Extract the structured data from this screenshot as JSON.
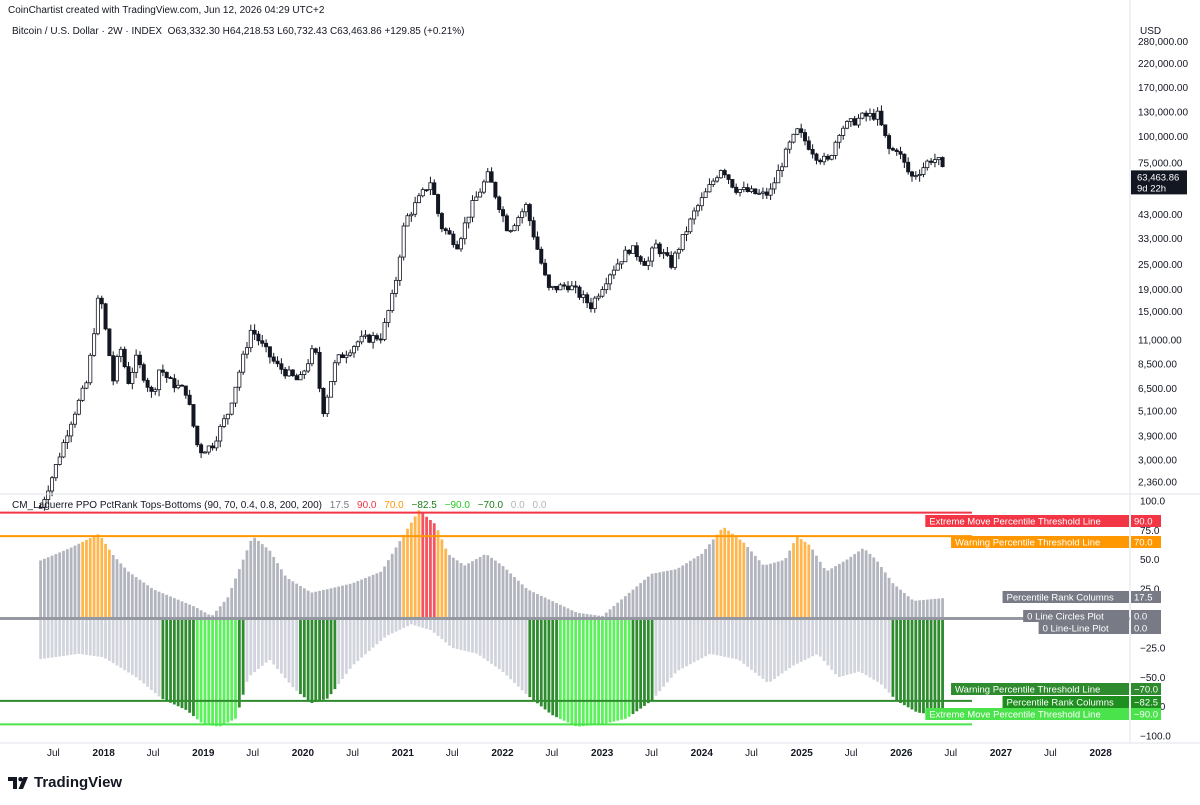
{
  "header": {
    "credit": "CoinChartist created with TradingView.com, Jun 12, 2026 04:29 UTC+2",
    "symbol": "Bitcoin / U.S. Dollar · 2W · INDEX",
    "ohlc": "O63,332.30  H64,218.53  L60,732.43  C63,463.86  +129.85 (+0.21%)"
  },
  "indicator": {
    "name": "CM_Laguerre PPO PctRank Tops-Bottoms (90, 70, 0.4, 0.8, 200, 200)",
    "values": [
      {
        "text": "17.5",
        "color": "#787b86"
      },
      {
        "text": "90.0",
        "color": "#f23645"
      },
      {
        "text": "70.0",
        "color": "#ff9800"
      },
      {
        "text": "−82.5",
        "color": "#1b7a1b"
      },
      {
        "text": "−90.0",
        "color": "#22c922"
      },
      {
        "text": "−70.0",
        "color": "#1b7a1b"
      },
      {
        "text": "0.0",
        "color": "#b2b5be"
      },
      {
        "text": "0.0",
        "color": "#b2b5be"
      }
    ]
  },
  "colors": {
    "extreme_top": "#f23645",
    "warning_top": "#ff9800",
    "warning_bottom": "#2e8b2e",
    "extreme_bottom": "#4be34b",
    "column_grey": "#b2b5be",
    "column_light": "#d1d4dc"
  },
  "branding": {
    "logo_icon": "tradingview-logo-icon",
    "name": "TradingView"
  },
  "chart_data": [
    {
      "type": "candlestick",
      "title": "Bitcoin / U.S. Dollar · 2W · INDEX",
      "currency": "USD",
      "scale": "log",
      "yticks": [
        "280,000.00",
        "220,000.00",
        "170,000.00",
        "130,000.00",
        "100,000.00",
        "75,000.00",
        "43,000.00",
        "33,000.00",
        "25,000.00",
        "19,000.00",
        "15,000.00",
        "11,000.00",
        "8,500.00",
        "6,500.00",
        "5,100.00",
        "3,900.00",
        "3,000.00",
        "2,360.00"
      ],
      "ylim": [
        2100,
        300000
      ],
      "last_price": "63,463.86",
      "countdown": "9d 22h",
      "close_path": [
        [
          "2017-05-15",
          1800
        ],
        [
          "2017-07-01",
          2600
        ],
        [
          "2017-09-01",
          4500
        ],
        [
          "2017-11-01",
          7000
        ],
        [
          "2017-12-17",
          19000
        ],
        [
          "2018-01-01",
          14000
        ],
        [
          "2018-02-06",
          7000
        ],
        [
          "2018-03-01",
          10500
        ],
        [
          "2018-04-01",
          7000
        ],
        [
          "2018-05-01",
          9000
        ],
        [
          "2018-06-29",
          6000
        ],
        [
          "2018-07-25",
          8200
        ],
        [
          "2018-09-01",
          7000
        ],
        [
          "2018-10-31",
          6300
        ],
        [
          "2018-12-15",
          3300
        ],
        [
          "2019-02-01",
          3500
        ],
        [
          "2019-04-01",
          5000
        ],
        [
          "2019-06-26",
          12500
        ],
        [
          "2019-08-01",
          10500
        ],
        [
          "2019-09-25",
          8400
        ],
        [
          "2019-12-18",
          7000
        ],
        [
          "2020-02-13",
          10300
        ],
        [
          "2020-03-13",
          5000
        ],
        [
          "2020-05-01",
          8800
        ],
        [
          "2020-07-27",
          11000
        ],
        [
          "2020-10-15",
          11500
        ],
        [
          "2020-12-01",
          19000
        ],
        [
          "2021-01-08",
          40000
        ],
        [
          "2021-04-14",
          62000
        ],
        [
          "2021-05-20",
          38000
        ],
        [
          "2021-07-20",
          31000
        ],
        [
          "2021-09-07",
          46000
        ],
        [
          "2021-11-10",
          66000
        ],
        [
          "2022-01-22",
          36000
        ],
        [
          "2022-03-28",
          47000
        ],
        [
          "2022-06-18",
          19000
        ],
        [
          "2022-09-01",
          20000
        ],
        [
          "2022-11-21",
          16000
        ],
        [
          "2023-01-31",
          23000
        ],
        [
          "2023-04-14",
          30000
        ],
        [
          "2023-06-15",
          25000
        ],
        [
          "2023-07-14",
          31000
        ],
        [
          "2023-09-11",
          25000
        ],
        [
          "2023-12-05",
          44000
        ],
        [
          "2024-03-14",
          72000
        ],
        [
          "2024-05-01",
          57000
        ],
        [
          "2024-08-05",
          53000
        ],
        [
          "2024-09-06",
          54000
        ],
        [
          "2024-11-15",
          90000
        ],
        [
          "2024-12-17",
          106000
        ],
        [
          "2025-02-28",
          80000
        ],
        [
          "2025-04-08",
          76000
        ],
        [
          "2025-05-22",
          109000
        ],
        [
          "2025-08-14",
          124000
        ],
        [
          "2025-10-06",
          126000
        ],
        [
          "2025-11-21",
          84000
        ],
        [
          "2025-12-15",
          88000
        ],
        [
          "2026-02-05",
          64000
        ],
        [
          "2026-03-15",
          70000
        ],
        [
          "2026-04-15",
          78000
        ],
        [
          "2026-05-15",
          78000
        ],
        [
          "2026-06-12",
          63463.86
        ]
      ]
    },
    {
      "type": "bar",
      "title": "CM_Laguerre PPO PctRank Tops-Bottoms (90, 70, 0.4, 0.8, 200, 200)",
      "yticks": [
        "100.0",
        "75.0",
        "50.0",
        "25.0",
        "0.0",
        "−25.0",
        "−50.0",
        "−75.0",
        "−100.0"
      ],
      "ylim": [
        -105,
        105
      ],
      "thresholds": [
        {
          "value": 90,
          "label": "Extreme Move Percentile Threshold Line",
          "display": "90.0",
          "color": "#f23645"
        },
        {
          "value": 70,
          "label": "Warning Percentile Threshold Line",
          "display": "70.0",
          "color": "#ff9800"
        },
        {
          "value": -70,
          "label": "Warning Percentile Threshold Line",
          "display": "−70.0",
          "color": "#2e8b2e"
        },
        {
          "value": -90,
          "label": "Extreme Move Percentile Threshold Line",
          "display": "−90.0",
          "color": "#4be34b"
        }
      ],
      "series_labels": [
        {
          "label": "Percentile Rank Columns",
          "display": "17.5",
          "value": 17.5,
          "color": "#787b86"
        },
        {
          "label": "0 Line Circles Plot",
          "display": "0.0",
          "value": 0,
          "color": "#787b86"
        },
        {
          "label": "0 Line-Line Plot",
          "display": "0.0",
          "value": 0,
          "color": "#787b86"
        },
        {
          "label": "Percentile Rank Columns",
          "display": "−82.5",
          "value": -82.5,
          "color": "#1e8e1e"
        }
      ],
      "top_profile": [
        [
          "2017-05-01",
          48
        ],
        [
          "2017-09-01",
          60
        ],
        [
          "2017-12-15",
          72
        ],
        [
          "2018-02-01",
          55
        ],
        [
          "2018-04-01",
          40
        ],
        [
          "2018-07-01",
          25
        ],
        [
          "2018-12-01",
          10
        ],
        [
          "2019-02-01",
          2
        ],
        [
          "2019-04-01",
          18
        ],
        [
          "2019-07-01",
          70
        ],
        [
          "2019-09-01",
          58
        ],
        [
          "2019-11-01",
          35
        ],
        [
          "2020-02-01",
          22
        ],
        [
          "2020-04-01",
          25
        ],
        [
          "2020-07-01",
          30
        ],
        [
          "2020-10-15",
          40
        ],
        [
          "2021-01-01",
          70
        ],
        [
          "2021-03-01",
          92
        ],
        [
          "2021-05-01",
          80
        ],
        [
          "2021-06-15",
          55
        ],
        [
          "2021-08-15",
          45
        ],
        [
          "2021-11-01",
          55
        ],
        [
          "2022-01-01",
          45
        ],
        [
          "2022-04-01",
          25
        ],
        [
          "2022-07-01",
          15
        ],
        [
          "2022-10-01",
          5
        ],
        [
          "2023-01-01",
          2
        ],
        [
          "2023-04-01",
          20
        ],
        [
          "2023-07-01",
          38
        ],
        [
          "2023-10-01",
          42
        ],
        [
          "2024-01-01",
          55
        ],
        [
          "2024-03-20",
          78
        ],
        [
          "2024-06-01",
          65
        ],
        [
          "2024-08-15",
          45
        ],
        [
          "2024-11-01",
          50
        ],
        [
          "2024-12-15",
          70
        ],
        [
          "2025-02-01",
          62
        ],
        [
          "2025-04-01",
          40
        ],
        [
          "2025-06-15",
          50
        ],
        [
          "2025-08-15",
          60
        ],
        [
          "2025-10-01",
          50
        ],
        [
          "2025-12-01",
          30
        ],
        [
          "2026-02-15",
          15
        ],
        [
          "2026-06-12",
          17.5
        ]
      ],
      "bottom_profile": [
        [
          "2017-05-01",
          -35
        ],
        [
          "2017-10-01",
          -30
        ],
        [
          "2018-01-01",
          -33
        ],
        [
          "2018-05-01",
          -50
        ],
        [
          "2018-08-01",
          -68
        ],
        [
          "2018-11-01",
          -78
        ],
        [
          "2019-01-01",
          -90
        ],
        [
          "2019-03-01",
          -92
        ],
        [
          "2019-05-01",
          -85
        ],
        [
          "2019-06-15",
          -50
        ],
        [
          "2019-09-01",
          -35
        ],
        [
          "2019-12-01",
          -60
        ],
        [
          "2020-02-01",
          -72
        ],
        [
          "2020-04-01",
          -68
        ],
        [
          "2020-07-01",
          -40
        ],
        [
          "2020-11-01",
          -15
        ],
        [
          "2021-02-01",
          -5
        ],
        [
          "2021-04-15",
          -10
        ],
        [
          "2021-07-01",
          -25
        ],
        [
          "2021-10-01",
          -30
        ],
        [
          "2022-01-01",
          -45
        ],
        [
          "2022-04-01",
          -65
        ],
        [
          "2022-07-01",
          -82
        ],
        [
          "2022-10-01",
          -92
        ],
        [
          "2023-01-01",
          -90
        ],
        [
          "2023-04-01",
          -85
        ],
        [
          "2023-07-01",
          -70
        ],
        [
          "2023-10-01",
          -45
        ],
        [
          "2024-02-01",
          -30
        ],
        [
          "2024-05-15",
          -35
        ],
        [
          "2024-09-01",
          -55
        ],
        [
          "2024-12-01",
          -40
        ],
        [
          "2025-03-01",
          -30
        ],
        [
          "2025-05-15",
          -50
        ],
        [
          "2025-08-01",
          -45
        ],
        [
          "2025-10-15",
          -55
        ],
        [
          "2025-12-15",
          -70
        ],
        [
          "2026-03-01",
          -80
        ],
        [
          "2026-06-12",
          -82.5
        ]
      ],
      "highlight_ranges": [
        {
          "from": "2017-10-15",
          "to": "2018-01-31",
          "side": "top",
          "color": "#ffb74d"
        },
        {
          "from": "2021-01-01",
          "to": "2021-03-15",
          "side": "top",
          "color": "#ffb74d"
        },
        {
          "from": "2021-03-15",
          "to": "2021-05-10",
          "side": "top",
          "color": "#f7525f"
        },
        {
          "from": "2021-05-10",
          "to": "2021-06-20",
          "side": "top",
          "color": "#ffb74d"
        },
        {
          "from": "2024-02-15",
          "to": "2024-06-15",
          "side": "top",
          "color": "#ffb74d"
        },
        {
          "from": "2024-12-01",
          "to": "2025-01-31",
          "side": "top",
          "color": "#ffb74d"
        },
        {
          "from": "2018-08-01",
          "to": "2018-11-30",
          "side": "bottom",
          "color": "#2e8b2e"
        },
        {
          "from": "2018-11-30",
          "to": "2019-05-01",
          "side": "bottom",
          "color": "#5cf25c"
        },
        {
          "from": "2019-05-01",
          "to": "2019-06-10",
          "side": "bottom",
          "color": "#2e8b2e"
        },
        {
          "from": "2019-12-15",
          "to": "2020-05-01",
          "side": "bottom",
          "color": "#2e8b2e"
        },
        {
          "from": "2022-04-01",
          "to": "2022-07-20",
          "side": "bottom",
          "color": "#2e8b2e"
        },
        {
          "from": "2022-07-20",
          "to": "2023-04-15",
          "side": "bottom",
          "color": "#5cf25c"
        },
        {
          "from": "2023-04-15",
          "to": "2023-07-15",
          "side": "bottom",
          "color": "#2e8b2e"
        },
        {
          "from": "2025-12-01",
          "to": "2026-06-12",
          "side": "bottom",
          "color": "#2e8b2e"
        }
      ]
    }
  ],
  "xaxis": {
    "ticks": [
      {
        "label": "Jul",
        "date": "2017-07-01",
        "year": false
      },
      {
        "label": "2018",
        "date": "2018-01-01",
        "year": true
      },
      {
        "label": "Jul",
        "date": "2018-07-01",
        "year": false
      },
      {
        "label": "2019",
        "date": "2019-01-01",
        "year": true
      },
      {
        "label": "Jul",
        "date": "2019-07-01",
        "year": false
      },
      {
        "label": "2020",
        "date": "2020-01-01",
        "year": true
      },
      {
        "label": "Jul",
        "date": "2020-07-01",
        "year": false
      },
      {
        "label": "2021",
        "date": "2021-01-01",
        "year": true
      },
      {
        "label": "Jul",
        "date": "2021-07-01",
        "year": false
      },
      {
        "label": "2022",
        "date": "2022-01-01",
        "year": true
      },
      {
        "label": "Jul",
        "date": "2022-07-01",
        "year": false
      },
      {
        "label": "2023",
        "date": "2023-01-01",
        "year": true
      },
      {
        "label": "Jul",
        "date": "2023-07-01",
        "year": false
      },
      {
        "label": "2024",
        "date": "2024-01-01",
        "year": true
      },
      {
        "label": "Jul",
        "date": "2024-07-01",
        "year": false
      },
      {
        "label": "2025",
        "date": "2025-01-01",
        "year": true
      },
      {
        "label": "Jul",
        "date": "2025-07-01",
        "year": false
      },
      {
        "label": "2026",
        "date": "2026-01-01",
        "year": true
      },
      {
        "label": "Jul",
        "date": "2026-07-01",
        "year": false
      },
      {
        "label": "2027",
        "date": "2027-01-01",
        "year": true
      },
      {
        "label": "Jul",
        "date": "2027-07-01",
        "year": false
      },
      {
        "label": "2028",
        "date": "2028-01-01",
        "year": true
      }
    ]
  }
}
